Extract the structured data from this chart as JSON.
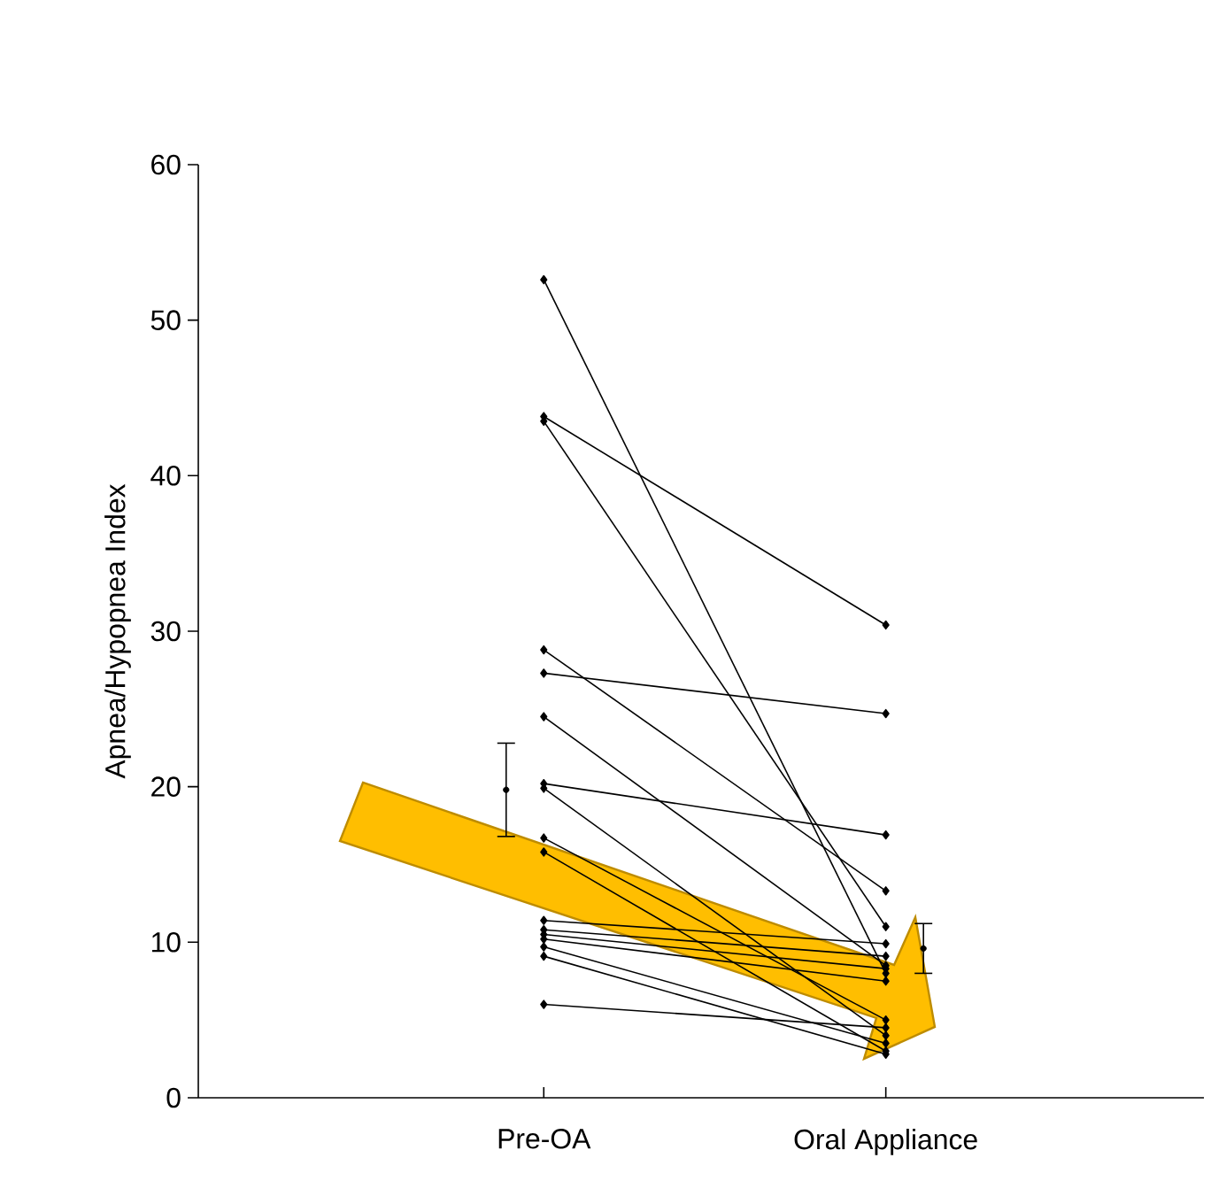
{
  "chart_data": {
    "type": "line",
    "ylabel": "Apnea/Hypopnea Index",
    "categories": [
      "Pre-OA",
      "Oral Appliance"
    ],
    "ylim": [
      0,
      60
    ],
    "yticks": [
      0,
      10,
      20,
      30,
      40,
      50,
      60
    ],
    "marker": "diamond",
    "series": [
      {
        "color": "#000000",
        "values": [
          52.6,
          8.0
        ]
      },
      {
        "color": "#000000",
        "values": [
          43.8,
          30.4
        ]
      },
      {
        "color": "#000000",
        "values": [
          43.5,
          11.0
        ]
      },
      {
        "color": "#000000",
        "values": [
          28.8,
          13.3
        ]
      },
      {
        "color": "#000000",
        "values": [
          27.3,
          24.7
        ]
      },
      {
        "color": "#000000",
        "values": [
          24.5,
          8.5
        ]
      },
      {
        "color": "#000000",
        "values": [
          20.2,
          16.9
        ]
      },
      {
        "color": "#000000",
        "values": [
          19.9,
          4.0
        ]
      },
      {
        "color": "#000000",
        "values": [
          16.7,
          5.0
        ]
      },
      {
        "color": "#000000",
        "values": [
          15.8,
          3.0
        ]
      },
      {
        "color": "#000000",
        "values": [
          11.4,
          9.9
        ]
      },
      {
        "color": "#000000",
        "values": [
          10.8,
          9.1
        ]
      },
      {
        "color": "#000000",
        "values": [
          10.5,
          8.3
        ]
      },
      {
        "color": "#000000",
        "values": [
          10.2,
          7.5
        ]
      },
      {
        "color": "#000000",
        "values": [
          9.7,
          3.5
        ]
      },
      {
        "color": "#000000",
        "values": [
          9.1,
          2.8
        ]
      },
      {
        "color": "#000000",
        "values": [
          6.0,
          4.5
        ]
      },
      {
        "type": "scatter",
        "color": "#000000",
        "values": [
          19.8,
          9.6
        ],
        "errors": [
          3.0,
          1.6
        ]
      }
    ]
  }
}
